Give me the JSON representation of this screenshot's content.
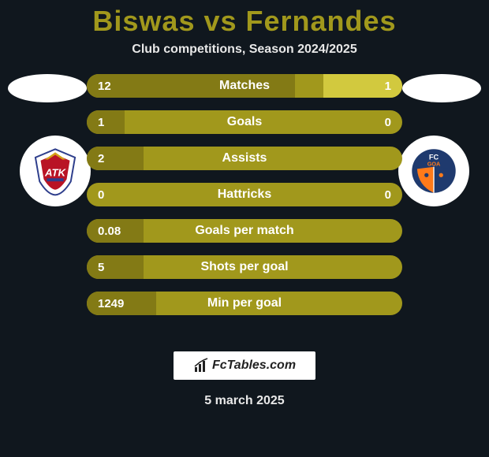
{
  "title": "Biswas vs Fernandes",
  "subtitle": "Club competitions, Season 2024/2025",
  "date": "5 march 2025",
  "brand": "FcTables.com",
  "colors": {
    "bg": "#10171e",
    "accent": "#a1981c",
    "fill_left": "#837a15",
    "fill_right": "#d2c93e",
    "text": "#ffffff"
  },
  "team_left": {
    "name": "ATK",
    "badge_bg": "#ffffff",
    "primary": "#b91325",
    "secondary": "#2e3e8c",
    "accent": "#d4a017"
  },
  "team_right": {
    "name": "FC Goa",
    "badge_bg": "#ffffff",
    "primary": "#1f3a6e",
    "secondary": "#ff7a1a"
  },
  "rows": [
    {
      "label": "Matches",
      "left": "12",
      "right": "1",
      "left_pct": 66,
      "right_pct": 25
    },
    {
      "label": "Goals",
      "left": "1",
      "right": "0",
      "left_pct": 12,
      "right_pct": 0
    },
    {
      "label": "Assists",
      "left": "2",
      "right": "",
      "left_pct": 18,
      "right_pct": 0
    },
    {
      "label": "Hattricks",
      "left": "0",
      "right": "0",
      "left_pct": 0,
      "right_pct": 0
    },
    {
      "label": "Goals per match",
      "left": "0.08",
      "right": "",
      "left_pct": 18,
      "right_pct": 0
    },
    {
      "label": "Shots per goal",
      "left": "5",
      "right": "",
      "left_pct": 18,
      "right_pct": 0
    },
    {
      "label": "Min per goal",
      "left": "1249",
      "right": "",
      "left_pct": 22,
      "right_pct": 0
    }
  ]
}
